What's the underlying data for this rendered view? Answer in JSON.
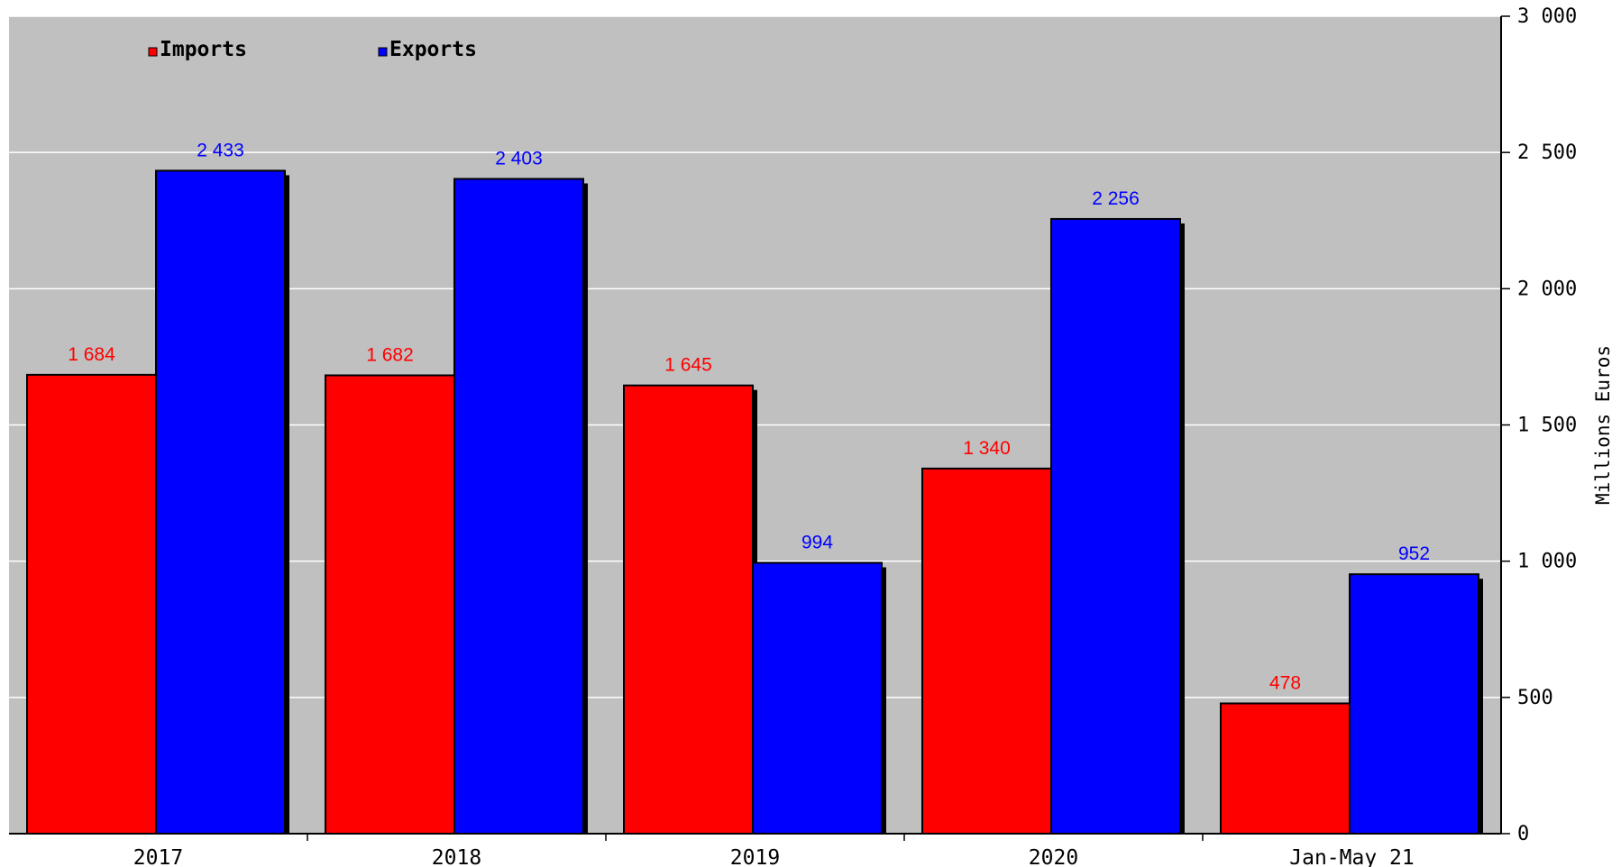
{
  "chart_data": {
    "type": "bar",
    "categories": [
      "2017",
      "2018",
      "2019",
      "2020",
      "Jan-May 21"
    ],
    "series": [
      {
        "name": "Imports",
        "values": [
          1684,
          1682,
          1645,
          1340,
          478
        ],
        "labels": [
          "1 684",
          "1 682",
          "1 645",
          "1 340",
          "478"
        ],
        "color": "#ff0000"
      },
      {
        "name": "Exports",
        "values": [
          2433,
          2403,
          994,
          2256,
          952
        ],
        "labels": [
          "2 433",
          "2 403",
          "994",
          "2 256",
          "952"
        ],
        "color": "#0000ff"
      }
    ],
    "ylabel": "Millions Euros",
    "ylim": [
      0,
      3000
    ],
    "yticks": [
      0,
      500,
      1000,
      1500,
      2000,
      2500,
      3000
    ],
    "ytick_labels": [
      "0",
      "500",
      "1 000",
      "1 500",
      "2 000",
      "2 500",
      "3 000"
    ],
    "y_axis_side": "right",
    "grid": true,
    "legend_position": "top-left",
    "plot_background": "#c0c0c0",
    "grid_color": "#ffffff"
  }
}
